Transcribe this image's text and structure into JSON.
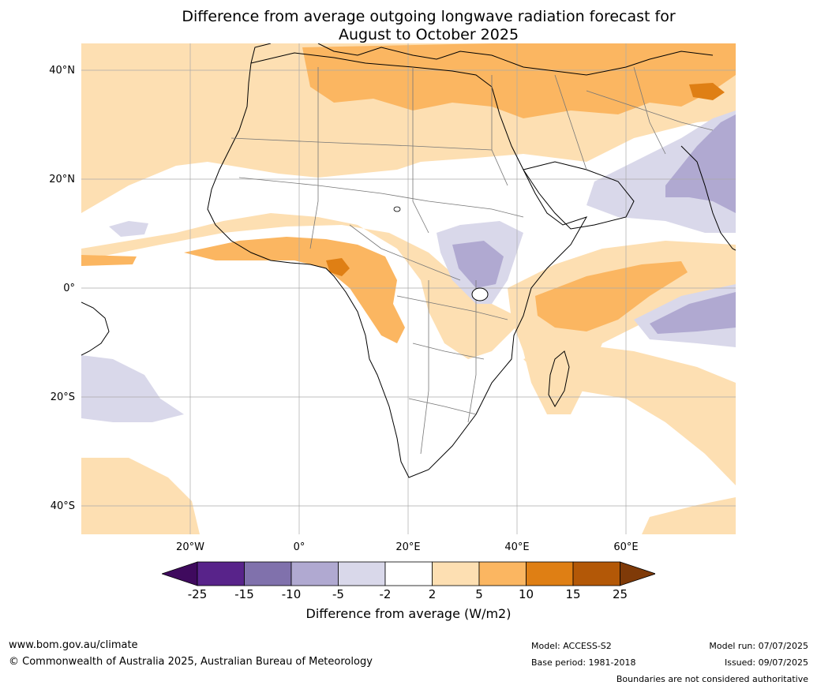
{
  "title_line1": "Difference from average outgoing longwave radiation forecast for",
  "title_line2": "August to October 2025",
  "lat_labels": [
    "40°N",
    "20°N",
    "0°",
    "20°S",
    "40°S"
  ],
  "lon_labels": [
    "20°W",
    "0°",
    "20°E",
    "40°E",
    "60°E"
  ],
  "colorbar": {
    "ticks": [
      "-25",
      "-15",
      "-10",
      "-5",
      "-2",
      "2",
      "5",
      "10",
      "15",
      "25"
    ],
    "colors": [
      "#3f0a5e",
      "#58238a",
      "#8071ac",
      "#b0a9d1",
      "#d9d8ea",
      "#ffffff",
      "#fddfb2",
      "#fbb661",
      "#df7f14",
      "#b35807",
      "#7f3a08"
    ],
    "label": "Difference from average (W/m2)"
  },
  "footer": {
    "website": "www.bom.gov.au/climate",
    "copyright": "© Commonwealth of Australia 2025, Australian Bureau of Meteorology",
    "model": "Model: ACCESS-S2",
    "base_period": "Base period: 1981-2018",
    "model_run": "Model run: 07/07/2025",
    "issued": "Issued: 09/07/2025",
    "disclaimer": "Boundaries are not considered authoritative"
  }
}
